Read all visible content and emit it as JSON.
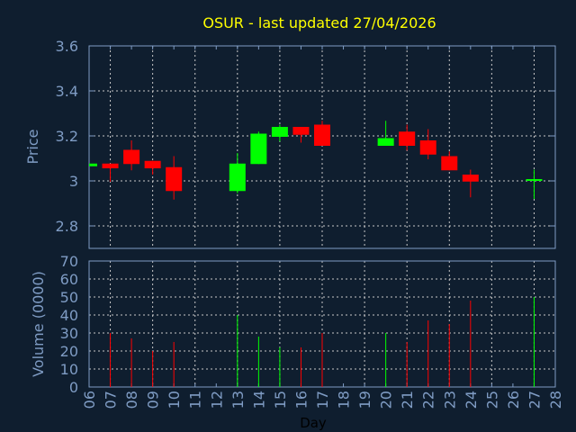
{
  "chart_data": [
    {
      "type": "candlestick",
      "title": "OSUR - last updated 27/04/2026",
      "ylabel": "Price",
      "ylim": [
        2.7,
        3.6
      ],
      "yticks": [
        "2.8",
        "3",
        "3.2",
        "3.4",
        "3.6"
      ],
      "grid": true,
      "colors": {
        "up": "#00ff00",
        "down": "#ff0000"
      },
      "candles": [
        {
          "day": 6,
          "open": 3.065,
          "high": 3.077,
          "low": 3.065,
          "close": 3.077
        },
        {
          "day": 7,
          "open": 3.077,
          "high": 3.077,
          "low": 2.996,
          "close": 3.056
        },
        {
          "day": 8,
          "open": 3.138,
          "high": 3.18,
          "low": 3.047,
          "close": 3.075
        },
        {
          "day": 9,
          "open": 3.089,
          "high": 3.089,
          "low": 3.028,
          "close": 3.056
        },
        {
          "day": 10,
          "open": 3.061,
          "high": 3.11,
          "low": 2.917,
          "close": 2.955
        },
        {
          "day": 13,
          "open": 2.955,
          "high": 3.124,
          "low": 2.945,
          "close": 3.077
        },
        {
          "day": 14,
          "open": 3.075,
          "high": 3.219,
          "low": 3.075,
          "close": 3.21
        },
        {
          "day": 15,
          "open": 3.196,
          "high": 3.25,
          "low": 3.175,
          "close": 3.24
        },
        {
          "day": 16,
          "open": 3.24,
          "high": 3.24,
          "low": 3.17,
          "close": 3.205
        },
        {
          "day": 17,
          "open": 3.25,
          "high": 3.267,
          "low": 3.156,
          "close": 3.156
        },
        {
          "day": 20,
          "open": 3.156,
          "high": 3.267,
          "low": 3.156,
          "close": 3.19
        },
        {
          "day": 21,
          "open": 3.219,
          "high": 3.25,
          "low": 3.135,
          "close": 3.156
        },
        {
          "day": 22,
          "open": 3.18,
          "high": 3.23,
          "low": 3.096,
          "close": 3.117
        },
        {
          "day": 23,
          "open": 3.11,
          "high": 3.131,
          "low": 3.047,
          "close": 3.047
        },
        {
          "day": 24,
          "open": 3.028,
          "high": 3.05,
          "low": 2.927,
          "close": 2.997
        },
        {
          "day": 27,
          "open": 3.0,
          "high": 3.05,
          "low": 2.92,
          "close": 3.008
        }
      ]
    },
    {
      "type": "bar",
      "ylabel": "Volume (0000)",
      "xlabel": "Day",
      "ylim": [
        0,
        70
      ],
      "yticks": [
        "0",
        "10",
        "20",
        "30",
        "40",
        "50",
        "60",
        "70"
      ],
      "xticks": [
        "06",
        "07",
        "08",
        "09",
        "10",
        "11",
        "12",
        "13",
        "14",
        "15",
        "16",
        "17",
        "18",
        "19",
        "20",
        "21",
        "22",
        "23",
        "24",
        "25",
        "26",
        "27",
        "28"
      ],
      "grid": true,
      "bars": [
        {
          "day": 7,
          "value": 30,
          "dir": "down"
        },
        {
          "day": 8,
          "value": 27,
          "dir": "down"
        },
        {
          "day": 9,
          "value": 20,
          "dir": "down"
        },
        {
          "day": 10,
          "value": 25,
          "dir": "down"
        },
        {
          "day": 13,
          "value": 40,
          "dir": "up"
        },
        {
          "day": 14,
          "value": 28,
          "dir": "up"
        },
        {
          "day": 15,
          "value": 22,
          "dir": "up"
        },
        {
          "day": 16,
          "value": 22,
          "dir": "down"
        },
        {
          "day": 17,
          "value": 30,
          "dir": "down"
        },
        {
          "day": 20,
          "value": 30,
          "dir": "up"
        },
        {
          "day": 21,
          "value": 25,
          "dir": "down"
        },
        {
          "day": 22,
          "value": 37,
          "dir": "down"
        },
        {
          "day": 23,
          "value": 35,
          "dir": "down"
        },
        {
          "day": 24,
          "value": 48,
          "dir": "down"
        },
        {
          "day": 27,
          "value": 50,
          "dir": "up"
        }
      ]
    }
  ]
}
